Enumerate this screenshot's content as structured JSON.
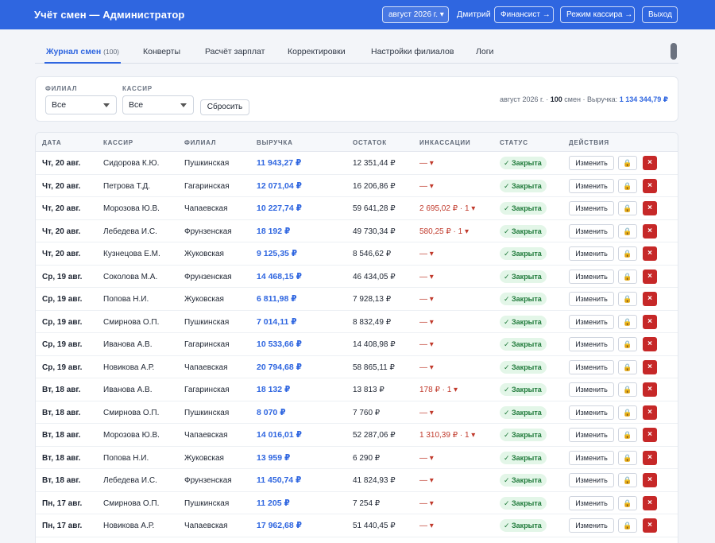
{
  "header": {
    "title": "Учёт смен — Администратор",
    "month_button": "август 2026 г. ▾",
    "user": "Дмитрий",
    "finance_button": "Финансист →",
    "cashier_mode_button": "Режим кассира →",
    "logout_button": "Выход"
  },
  "tabs": [
    {
      "label": "Журнал смен",
      "count": "(100)"
    },
    {
      "label": "Конверты"
    },
    {
      "label": "Расчёт зарплат"
    },
    {
      "label": "Корректировки"
    },
    {
      "label": "Настройки филиалов"
    },
    {
      "label": "Логи"
    }
  ],
  "filters": {
    "branch_label": "ФИЛИАЛ",
    "branch_value": "Все",
    "cashier_label": "КАССИР",
    "cashier_value": "Все",
    "reset_button": "Сбросить"
  },
  "summary": {
    "month": "август 2026 г. ·",
    "shifts": "100",
    "shifts_suffix": "смен · Выручка:",
    "revenue": "1 134 344,79 ₽"
  },
  "table": {
    "columns": [
      "ДАТА",
      "КАССИР",
      "ФИЛИАЛ",
      "ВЫРУЧКА",
      "ОСТАТОК",
      "ИНКАССАЦИИ",
      "СТАТУС",
      "ДЕЙСТВИЯ"
    ],
    "edit_label": "Изменить",
    "lock_icon": "🔒",
    "delete_icon": "×",
    "status_colors": {
      "closed_bg": "#e3f6e8",
      "closed_text": "#1f7a3a"
    },
    "rows": [
      {
        "date": "Чт, 20 авг.",
        "cashier": "Сидорова К.Ю.",
        "branch": "Пушкинская",
        "revenue": "11 943,27 ₽",
        "rest": "12 351,44 ₽",
        "inc": "— ▾",
        "status": "✓ Закрыта"
      },
      {
        "date": "Чт, 20 авг.",
        "cashier": "Петрова Т.Д.",
        "branch": "Гагаринская",
        "revenue": "12 071,04 ₽",
        "rest": "16 206,86 ₽",
        "inc": "— ▾",
        "status": "✓ Закрыта"
      },
      {
        "date": "Чт, 20 авг.",
        "cashier": "Морозова Ю.В.",
        "branch": "Чапаевская",
        "revenue": "10 227,74 ₽",
        "rest": "59 641,28 ₽",
        "inc": "2 695,02 ₽ · 1 ▾",
        "status": "✓ Закрыта"
      },
      {
        "date": "Чт, 20 авг.",
        "cashier": "Лебедева И.С.",
        "branch": "Фрунзенская",
        "revenue": "18 192 ₽",
        "rest": "49 730,34 ₽",
        "inc": "580,25 ₽ · 1 ▾",
        "status": "✓ Закрыта"
      },
      {
        "date": "Чт, 20 авг.",
        "cashier": "Кузнецова Е.М.",
        "branch": "Жуковская",
        "revenue": "9 125,35 ₽",
        "rest": "8 546,62 ₽",
        "inc": "— ▾",
        "status": "✓ Закрыта"
      },
      {
        "date": "Ср, 19 авг.",
        "cashier": "Соколова М.А.",
        "branch": "Фрунзенская",
        "revenue": "14 468,15 ₽",
        "rest": "46 434,05 ₽",
        "inc": "— ▾",
        "status": "✓ Закрыта"
      },
      {
        "date": "Ср, 19 авг.",
        "cashier": "Попова Н.И.",
        "branch": "Жуковская",
        "revenue": "6 811,98 ₽",
        "rest": "7 928,13 ₽",
        "inc": "— ▾",
        "status": "✓ Закрыта"
      },
      {
        "date": "Ср, 19 авг.",
        "cashier": "Смирнова О.П.",
        "branch": "Пушкинская",
        "revenue": "7 014,11 ₽",
        "rest": "8 832,49 ₽",
        "inc": "— ▾",
        "status": "✓ Закрыта"
      },
      {
        "date": "Ср, 19 авг.",
        "cashier": "Иванова А.В.",
        "branch": "Гагаринская",
        "revenue": "10 533,66 ₽",
        "rest": "14 408,98 ₽",
        "inc": "— ▾",
        "status": "✓ Закрыта"
      },
      {
        "date": "Ср, 19 авг.",
        "cashier": "Новикова А.Р.",
        "branch": "Чапаевская",
        "revenue": "20 794,68 ₽",
        "rest": "58 865,11 ₽",
        "inc": "— ▾",
        "status": "✓ Закрыта"
      },
      {
        "date": "Вт, 18 авг.",
        "cashier": "Иванова А.В.",
        "branch": "Гагаринская",
        "revenue": "18 132 ₽",
        "rest": "13 813 ₽",
        "inc": "178 ₽ · 1 ▾",
        "status": "✓ Закрыта"
      },
      {
        "date": "Вт, 18 авг.",
        "cashier": "Смирнова О.П.",
        "branch": "Пушкинская",
        "revenue": "8 070 ₽",
        "rest": "7 760 ₽",
        "inc": "— ▾",
        "status": "✓ Закрыта"
      },
      {
        "date": "Вт, 18 авг.",
        "cashier": "Морозова Ю.В.",
        "branch": "Чапаевская",
        "revenue": "14 016,01 ₽",
        "rest": "52 287,06 ₽",
        "inc": "1 310,39 ₽ · 1 ▾",
        "status": "✓ Закрыта"
      },
      {
        "date": "Вт, 18 авг.",
        "cashier": "Попова Н.И.",
        "branch": "Жуковская",
        "revenue": "13 959 ₽",
        "rest": "6 290 ₽",
        "inc": "— ▾",
        "status": "✓ Закрыта"
      },
      {
        "date": "Вт, 18 авг.",
        "cashier": "Лебедева И.С.",
        "branch": "Фрунзенская",
        "revenue": "11 450,74 ₽",
        "rest": "41 824,93 ₽",
        "inc": "— ▾",
        "status": "✓ Закрыта"
      },
      {
        "date": "Пн, 17 авг.",
        "cashier": "Смирнова О.П.",
        "branch": "Пушкинская",
        "revenue": "11 205 ₽",
        "rest": "7 254 ₽",
        "inc": "— ▾",
        "status": "✓ Закрыта"
      },
      {
        "date": "Пн, 17 авг.",
        "cashier": "Новикова А.Р.",
        "branch": "Чапаевская",
        "revenue": "17 962,68 ₽",
        "rest": "51 440,45 ₽",
        "inc": "— ▾",
        "status": "✓ Закрыта"
      }
    ]
  }
}
